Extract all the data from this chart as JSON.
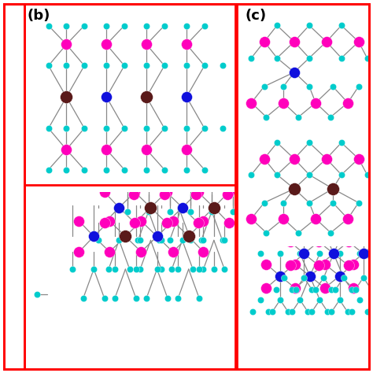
{
  "fig_width": 4.74,
  "fig_height": 4.74,
  "dpi": 100,
  "bg_color": "#ffffff",
  "border_color": "#ff0000",
  "border_lw": 2.0,
  "panel_b_label": "(b)",
  "panel_c_label": "(c)",
  "label_fontsize": 13,
  "label_fontweight": "bold",
  "colors": {
    "cyan": "#00CCCC",
    "magenta": "#FF00BB",
    "navy": "#1010DD",
    "brown": "#5A1A1A"
  },
  "atom_sizes": {
    "cyan": 35,
    "magenta": 100,
    "navy": 100,
    "brown": 130
  },
  "bond_color": "#888888",
  "bond_lw": 0.9
}
